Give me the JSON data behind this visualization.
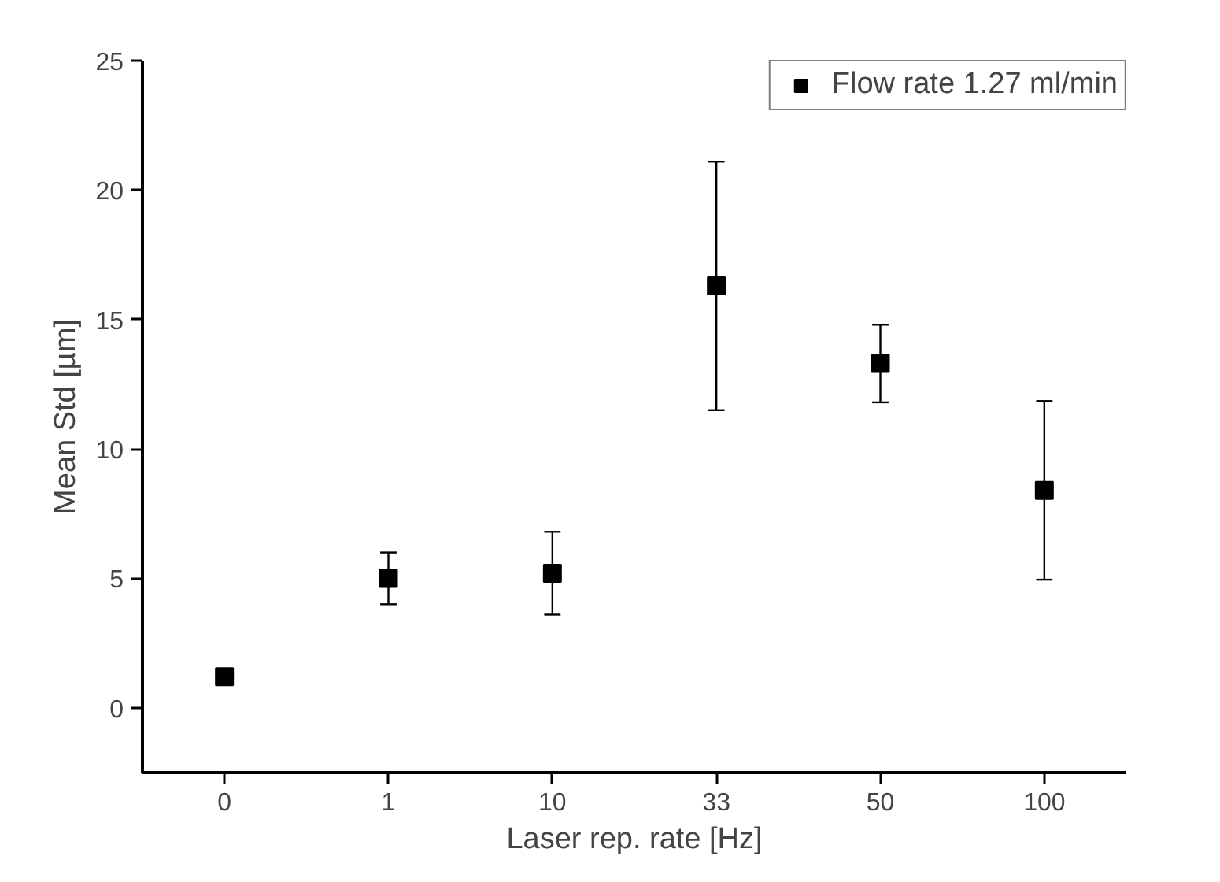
{
  "chart_data": {
    "type": "scatter",
    "xlabel": "Laser rep. rate [Hz]",
    "ylabel": "Mean Std [µm]",
    "categories": [
      "0",
      "1",
      "10",
      "33",
      "50",
      "100"
    ],
    "series": [
      {
        "name": "Flow rate 1.27 ml/min",
        "color": "#000000",
        "values": [
          1.2,
          5.0,
          5.2,
          16.3,
          13.3,
          8.4
        ],
        "errors": [
          null,
          1.0,
          1.6,
          4.8,
          1.5,
          3.45
        ]
      }
    ],
    "ylim": [
      -2.5,
      25
    ],
    "yticks": [
      0,
      5,
      10,
      15,
      20,
      25
    ],
    "marker": "square",
    "legend": "top right",
    "grid": false
  }
}
